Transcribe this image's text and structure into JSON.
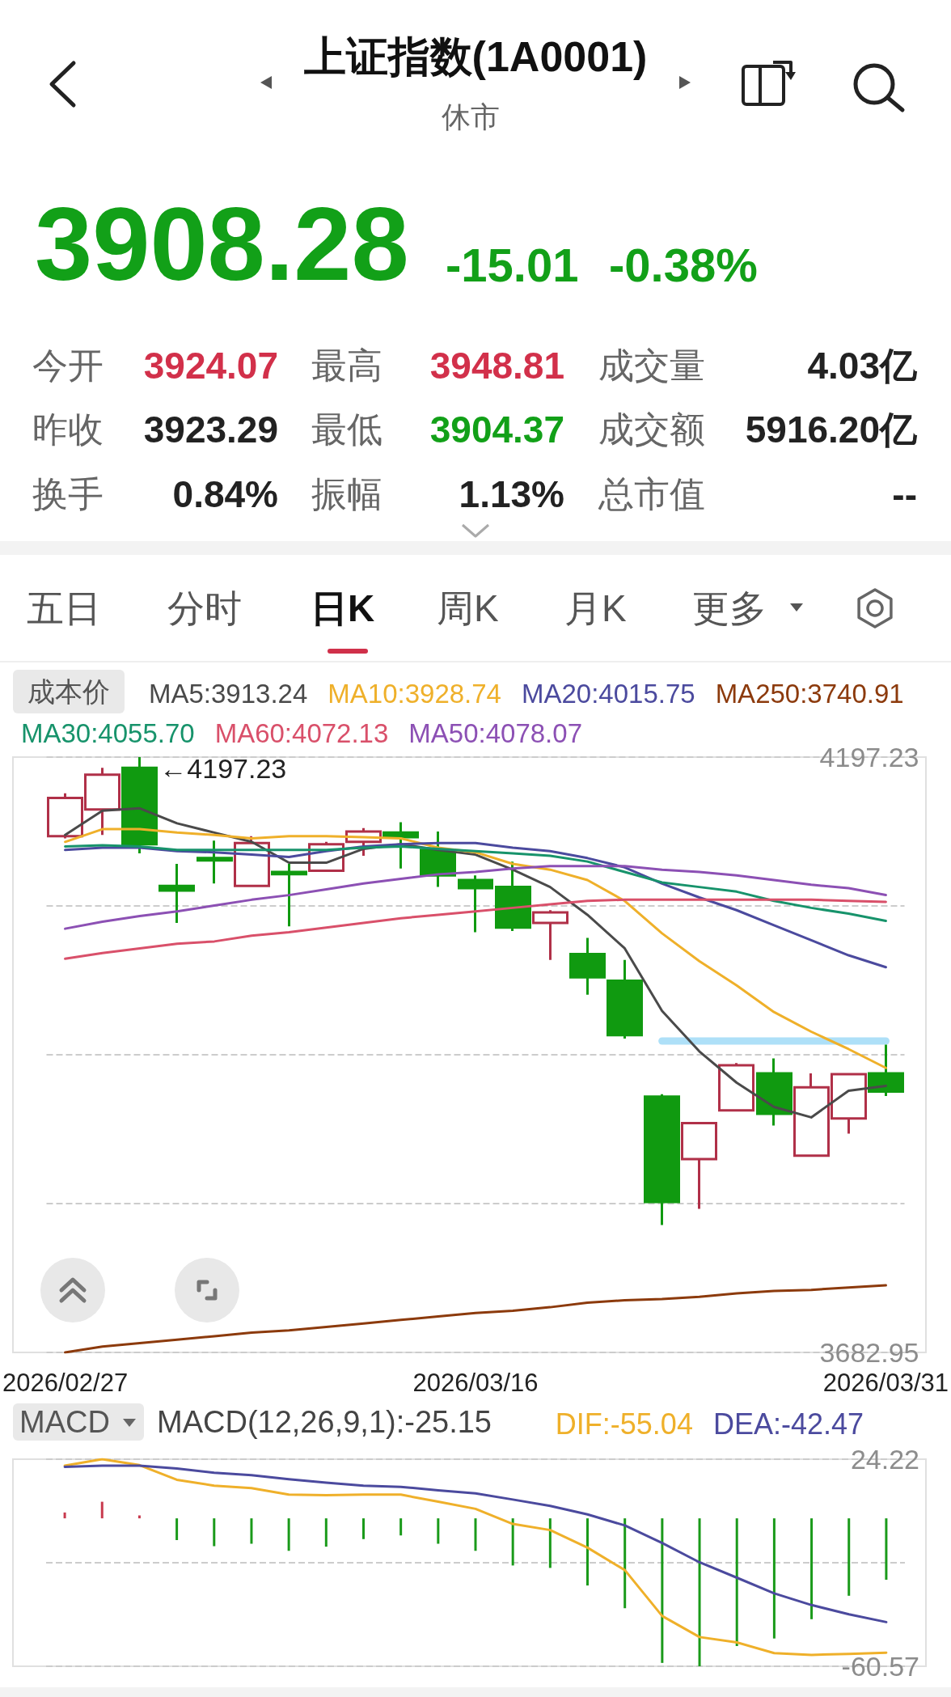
{
  "chart_data": [
    {
      "type": "other",
      "title": "上证指数(1A0001)",
      "subtitle": "休市",
      "annotations": [
        "3908.28",
        "-15.01",
        "-0.38%",
        "今开",
        "3924.07",
        "最高",
        "3948.81",
        "成交量",
        "4.03亿",
        "昨收",
        "3923.29",
        "最低",
        "3904.37",
        "成交额",
        "5916.20亿",
        "换手",
        "0.84%",
        "振幅",
        "1.13%",
        "总市值",
        "--",
        "五日",
        "分时",
        "日K",
        "周K",
        "月K",
        "更多"
      ]
    },
    {
      "type": "candlestick",
      "categories": [
        "2026/02/27",
        null,
        null,
        null,
        null,
        null,
        null,
        null,
        null,
        null,
        null,
        "2026/03/16",
        null,
        null,
        null,
        null,
        null,
        null,
        null,
        null,
        null,
        null,
        "2026/03/31"
      ],
      "ohlc": [
        [
          4129,
          4166,
          4127,
          4162
        ],
        [
          4152,
          4188,
          4130,
          4182
        ],
        [
          4188,
          4197.23,
          4114,
          4122
        ],
        [
          4086,
          4105,
          4054,
          4082
        ],
        [
          4110,
          4125,
          4088,
          4108
        ],
        [
          4086,
          4129,
          4085,
          4123
        ],
        [
          4098,
          4105,
          4051,
          4096
        ],
        [
          4099,
          4124,
          4098,
          4122
        ],
        [
          4124,
          4136,
          4112,
          4133
        ],
        [
          4132,
          4141,
          4101,
          4128
        ],
        [
          4117,
          4133,
          4085,
          4095
        ],
        [
          4091,
          4095,
          4046,
          4084
        ],
        [
          4085,
          4107,
          4047,
          4050
        ],
        [
          4054,
          4065,
          4022,
          4063
        ],
        [
          4027,
          4041,
          3992,
          4007
        ],
        [
          4004,
          4022,
          3954,
          3957
        ],
        [
          3904,
          3906,
          3793,
          3813
        ],
        [
          3850,
          3881,
          3807,
          3881
        ],
        [
          3892,
          3933,
          3892,
          3931
        ],
        [
          3924,
          3937,
          3879,
          3889
        ],
        [
          3853,
          3924,
          3853,
          3912
        ],
        [
          3885,
          3924,
          3872,
          3923.29
        ],
        [
          3924.07,
          3948.81,
          3904.37,
          3908.28
        ]
      ],
      "colors": [
        "#b03048",
        "#b03048",
        "#109a10",
        "#109a10",
        "#109a10",
        "#b03048",
        "#109a10",
        "#b03048",
        "#b03048",
        "#109a10",
        "#109a10",
        "#109a10",
        "#109a10",
        "#b03048",
        "#109a10",
        "#109a10",
        "#109a10",
        "#b03048",
        "#b03048",
        "#109a10",
        "#b03048",
        "#b03048",
        "#109a10"
      ],
      "ylim": [
        3682.95,
        4197.23
      ],
      "yticks": [
        3682.95,
        {
          "value": 3811.52,
          "label": null
        },
        {
          "value": 3940.09,
          "label": null
        },
        {
          "value": 4068.66,
          "label": null
        },
        4197.23
      ],
      "grid": "y",
      "legend": "top left",
      "annotations": [
        "成本价",
        "←4197.23"
      ],
      "series": [
        {
          "type": "line",
          "name": "MA5:3913.24",
          "color": "#4a4a4a",
          "values": [
            4130,
            4151,
            4153,
            4140,
            4132,
            4124,
            4106,
            4106,
            4118,
            4122,
            4117,
            4113,
            4100,
            4085,
            4061,
            4032,
            3978,
            3943,
            3916,
            3895,
            3886,
            3909,
            3913.24
          ]
        },
        {
          "type": "line",
          "name": "MA10:3928.74",
          "color": "#efb02a",
          "values": [
            4124,
            4135,
            4135,
            4132,
            4130,
            4127,
            4129,
            4129,
            4128,
            4127,
            4119,
            4115,
            4105,
            4100,
            4091,
            4073,
            4045,
            4021,
            4000,
            3977,
            3960,
            3945,
            3928.74
          ]
        },
        {
          "type": "line",
          "name": "MA20:4015.75",
          "color": "#4b4a9e",
          "values": [
            4117,
            4119,
            4119,
            4116,
            4115,
            4113,
            4111,
            4116,
            4120,
            4122,
            4123,
            4123,
            4119,
            4116,
            4110,
            4102,
            4088,
            4076,
            4065,
            4052,
            4039,
            4026,
            4015.75
          ]
        },
        {
          "type": "line",
          "name": "MA250:3740.91",
          "color": "#8c3a0c",
          "values": [
            3682.95,
            3688,
            3691,
            3694,
            3697,
            3700,
            3702,
            3705,
            3708,
            3711,
            3714,
            3717,
            3719,
            3722,
            3726,
            3728,
            3729,
            3731,
            3734,
            3736,
            3737,
            3739,
            3740.91
          ]
        },
        {
          "type": "line",
          "name": "MA30:4055.70",
          "color": "#17936b",
          "values": [
            4120,
            4121,
            4120,
            4117,
            4117,
            4117,
            4117,
            4117,
            4119,
            4120,
            4118,
            4116,
            4114,
            4112,
            4107,
            4098,
            4089,
            4085,
            4081,
            4073,
            4067,
            4062,
            4055.7
          ]
        },
        {
          "type": "line",
          "name": "MA60:4072.13",
          "color": "#d9506a",
          "values": [
            4023,
            4028,
            4032,
            4036,
            4038,
            4043,
            4046,
            4050,
            4054,
            4058,
            4061,
            4064,
            4067,
            4070,
            4073,
            4074,
            4074,
            4074,
            4074,
            4074,
            4074,
            4073,
            4072.13
          ]
        },
        {
          "type": "line",
          "name": "MA50:4078.07",
          "color": "#8c50b4",
          "values": [
            4049,
            4055,
            4060,
            4064,
            4069,
            4074,
            4078,
            4083,
            4088,
            4092,
            4096,
            4098,
            4101,
            4103,
            4103,
            4103,
            4100,
            4098,
            4095,
            4091,
            4087,
            4084,
            4078.07
          ]
        },
        {
          "type": "line",
          "color": "#aee0f8",
          "values": [
            null,
            null,
            null,
            null,
            null,
            null,
            null,
            null,
            null,
            null,
            null,
            null,
            null,
            null,
            null,
            null,
            3952,
            3952,
            3952,
            3952,
            3952,
            3952,
            3952
          ]
        }
      ]
    },
    {
      "type": "bar",
      "categories": [
        "2026/02/27",
        null,
        null,
        null,
        null,
        null,
        null,
        null,
        null,
        null,
        null,
        "2026/03/16",
        null,
        null,
        null,
        null,
        null,
        null,
        null,
        null,
        null,
        null,
        "2026/03/31"
      ],
      "tick_labels": "y",
      "ylim": [
        -60.57,
        24.22
      ],
      "yticks": [
        -60.57,
        {
          "value": -18.175,
          "label": null
        },
        24.22
      ],
      "grid": "y",
      "legend": "top right",
      "annotations": [
        "MACD",
        "MACD(12,26,9,1):-25.15"
      ],
      "series": [
        {
          "type": "bar",
          "colors": [
            "#c83a4e",
            "#c83a4e",
            "#c83a4e",
            "#1a9a1a",
            "#1a9a1a",
            "#1a9a1a",
            "#1a9a1a",
            "#1a9a1a",
            "#1a9a1a",
            "#1a9a1a",
            "#1a9a1a",
            "#1a9a1a",
            "#1a9a1a",
            "#1a9a1a",
            "#1a9a1a",
            "#1a9a1a",
            "#1a9a1a",
            "#1a9a1a",
            "#1a9a1a",
            "#1a9a1a",
            "#1a9a1a",
            "#1a9a1a",
            "#1a9a1a"
          ],
          "values": [
            2.4,
            6.8,
            1.2,
            -8.9,
            -11.4,
            -10.4,
            -13.3,
            -11.6,
            -8.5,
            -7.0,
            -10.4,
            -13.3,
            -19.3,
            -20.3,
            -27.5,
            -36.8,
            -59.2,
            -60.57,
            -52.3,
            -49.2,
            -41.3,
            -31.7,
            -25.15
          ]
        },
        {
          "type": "line",
          "name": "DIF:-55.04",
          "color": "#efb02a",
          "values": [
            21.6,
            24.22,
            21.8,
            15.8,
            13.4,
            12.4,
            9.7,
            9.5,
            9.7,
            9.7,
            6.8,
            3.9,
            -2.3,
            -4.8,
            -12.0,
            -21.2,
            -40.0,
            -48.6,
            -50.8,
            -55.2,
            -55.9,
            -55.5,
            -55.04
          ]
        },
        {
          "type": "line",
          "name": "DEA:-42.47",
          "color": "#4b4a9e",
          "values": [
            21.1,
            21.6,
            21.6,
            20.4,
            18.7,
            17.7,
            16.0,
            14.6,
            13.4,
            12.9,
            11.5,
            10.2,
            7.7,
            5.1,
            1.6,
            -2.9,
            -10.1,
            -18.0,
            -24.3,
            -30.7,
            -35.5,
            -39.3,
            -42.47
          ]
        }
      ]
    }
  ]
}
